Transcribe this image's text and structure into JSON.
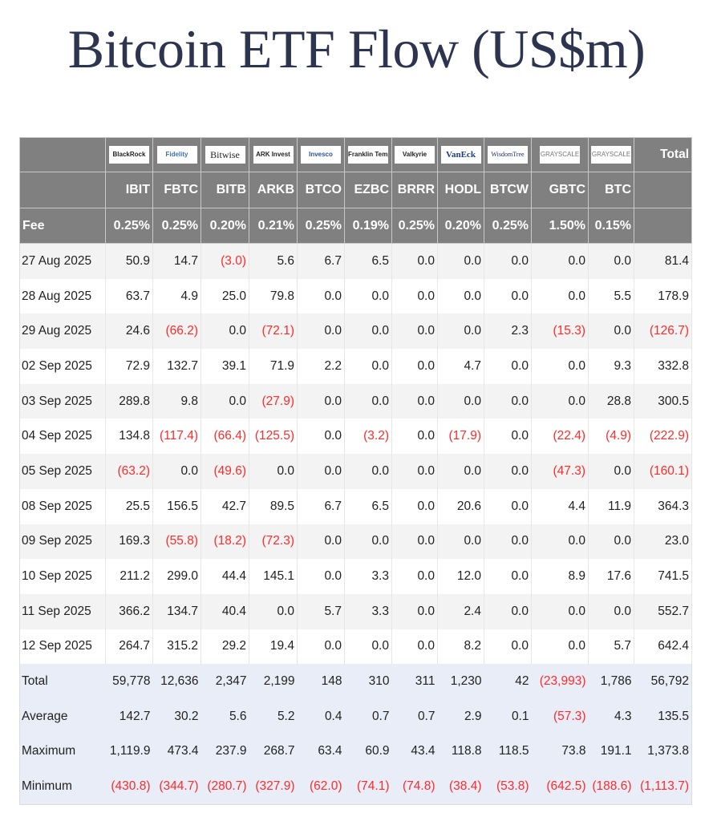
{
  "title": "Bitcoin ETF Flow (US$m)",
  "colors": {
    "header_bg": "#808080",
    "negative": "#ff2a2a",
    "summary_bg": "#e9edf7",
    "title": "#2d3450"
  },
  "chart_data": {
    "type": "table",
    "title": "Bitcoin ETF Flow (US$m)",
    "issuers": [
      "BlackRock",
      "Fidelity",
      "Bitwise",
      "ARK Invest",
      "Invesco",
      "Franklin Templeton",
      "Valkyrie",
      "VanEck",
      "WisdomTree",
      "Grayscale",
      "Grayscale"
    ],
    "tickers": [
      "IBIT",
      "FBTC",
      "BITB",
      "ARKB",
      "BTCO",
      "EZBC",
      "BRRR",
      "HODL",
      "BTCW",
      "GBTC",
      "BTC"
    ],
    "total_label": "Total",
    "fee_label": "Fee",
    "fees": [
      "0.25%",
      "0.25%",
      "0.20%",
      "0.21%",
      "0.25%",
      "0.19%",
      "0.25%",
      "0.20%",
      "0.25%",
      "1.50%",
      "0.15%"
    ],
    "rows": [
      {
        "date": "27 Aug 2025",
        "values": [
          "50.9",
          "14.7",
          "(3.0)",
          "5.6",
          "6.7",
          "6.5",
          "0.0",
          "0.0",
          "0.0",
          "0.0",
          "0.0",
          "81.4"
        ]
      },
      {
        "date": "28 Aug 2025",
        "values": [
          "63.7",
          "4.9",
          "25.0",
          "79.8",
          "0.0",
          "0.0",
          "0.0",
          "0.0",
          "0.0",
          "0.0",
          "5.5",
          "178.9"
        ]
      },
      {
        "date": "29 Aug 2025",
        "values": [
          "24.6",
          "(66.2)",
          "0.0",
          "(72.1)",
          "0.0",
          "0.0",
          "0.0",
          "0.0",
          "2.3",
          "(15.3)",
          "0.0",
          "(126.7)"
        ]
      },
      {
        "date": "02 Sep 2025",
        "values": [
          "72.9",
          "132.7",
          "39.1",
          "71.9",
          "2.2",
          "0.0",
          "0.0",
          "4.7",
          "0.0",
          "0.0",
          "9.3",
          "332.8"
        ]
      },
      {
        "date": "03 Sep 2025",
        "values": [
          "289.8",
          "9.8",
          "0.0",
          "(27.9)",
          "0.0",
          "0.0",
          "0.0",
          "0.0",
          "0.0",
          "0.0",
          "28.8",
          "300.5"
        ]
      },
      {
        "date": "04 Sep 2025",
        "values": [
          "134.8",
          "(117.4)",
          "(66.4)",
          "(125.5)",
          "0.0",
          "(3.2)",
          "0.0",
          "(17.9)",
          "0.0",
          "(22.4)",
          "(4.9)",
          "(222.9)"
        ]
      },
      {
        "date": "05 Sep 2025",
        "values": [
          "(63.2)",
          "0.0",
          "(49.6)",
          "0.0",
          "0.0",
          "0.0",
          "0.0",
          "0.0",
          "0.0",
          "(47.3)",
          "0.0",
          "(160.1)"
        ]
      },
      {
        "date": "08 Sep 2025",
        "values": [
          "25.5",
          "156.5",
          "42.7",
          "89.5",
          "6.7",
          "6.5",
          "0.0",
          "20.6",
          "0.0",
          "4.4",
          "11.9",
          "364.3"
        ]
      },
      {
        "date": "09 Sep 2025",
        "values": [
          "169.3",
          "(55.8)",
          "(18.2)",
          "(72.3)",
          "0.0",
          "0.0",
          "0.0",
          "0.0",
          "0.0",
          "0.0",
          "0.0",
          "23.0"
        ]
      },
      {
        "date": "10 Sep 2025",
        "values": [
          "211.2",
          "299.0",
          "44.4",
          "145.1",
          "0.0",
          "3.3",
          "0.0",
          "12.0",
          "0.0",
          "8.9",
          "17.6",
          "741.5"
        ]
      },
      {
        "date": "11 Sep 2025",
        "values": [
          "366.2",
          "134.7",
          "40.4",
          "0.0",
          "5.7",
          "3.3",
          "0.0",
          "2.4",
          "0.0",
          "0.0",
          "0.0",
          "552.7"
        ]
      },
      {
        "date": "12 Sep 2025",
        "values": [
          "264.7",
          "315.2",
          "29.2",
          "19.4",
          "0.0",
          "0.0",
          "0.0",
          "8.2",
          "0.0",
          "0.0",
          "5.7",
          "642.4"
        ]
      }
    ],
    "summary": [
      {
        "label": "Total",
        "values": [
          "59,778",
          "12,636",
          "2,347",
          "2,199",
          "148",
          "310",
          "311",
          "1,230",
          "42",
          "(23,993)",
          "1,786",
          "56,792"
        ]
      },
      {
        "label": "Average",
        "values": [
          "142.7",
          "30.2",
          "5.6",
          "5.2",
          "0.4",
          "0.7",
          "0.7",
          "2.9",
          "0.1",
          "(57.3)",
          "4.3",
          "135.5"
        ]
      },
      {
        "label": "Maximum",
        "values": [
          "1,119.9",
          "473.4",
          "237.9",
          "268.7",
          "63.4",
          "60.9",
          "43.4",
          "118.8",
          "118.5",
          "73.8",
          "191.1",
          "1,373.8"
        ]
      },
      {
        "label": "Minimum",
        "values": [
          "(430.8)",
          "(344.7)",
          "(280.7)",
          "(327.9)",
          "(62.0)",
          "(74.1)",
          "(74.8)",
          "(38.4)",
          "(53.8)",
          "(642.5)",
          "(188.6)",
          "(1,113.7)"
        ]
      }
    ]
  }
}
